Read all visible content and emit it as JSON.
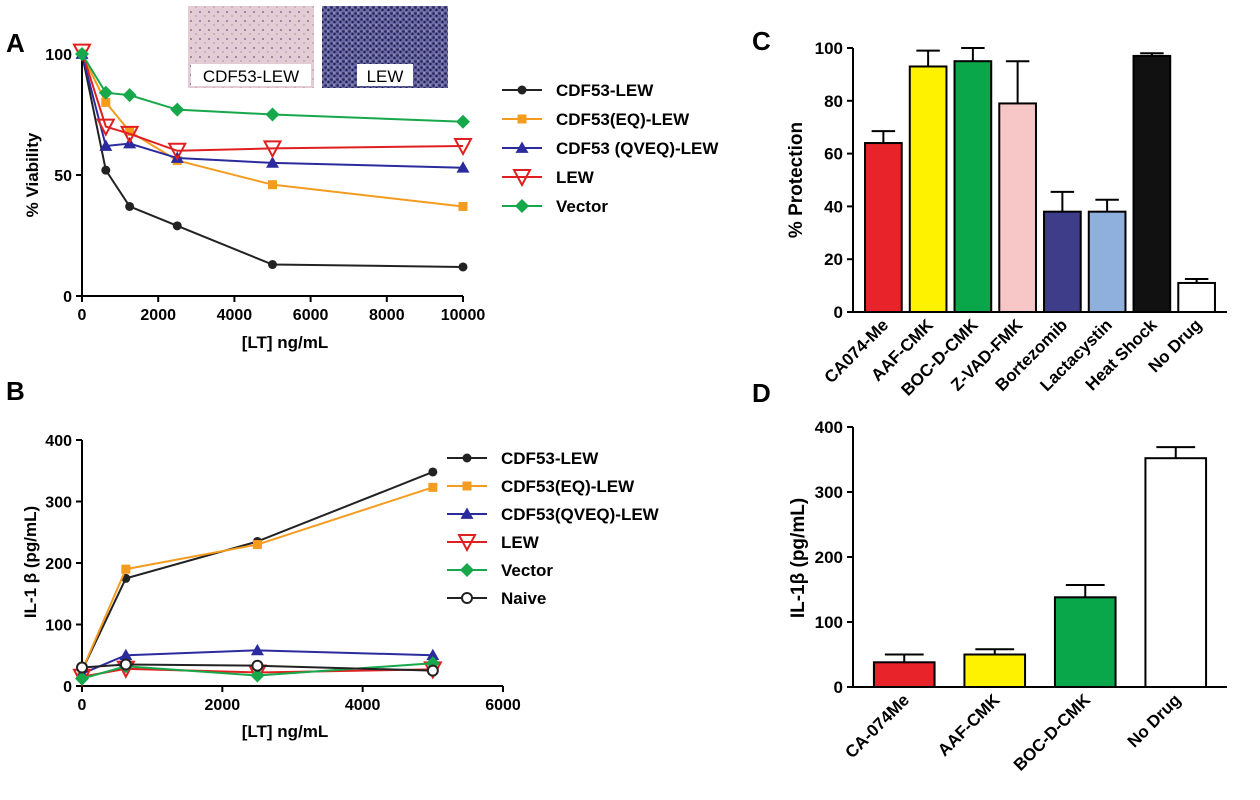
{
  "panel_labels": [
    "A",
    "B",
    "C",
    "D"
  ],
  "inset": {
    "left_label": "CDF53-LEW",
    "right_label": "LEW",
    "left_color": "#e6cfd6",
    "right_color": "#4a4a86"
  },
  "chart_data": [
    {
      "panel": "A",
      "type": "line",
      "xlabel": "[LT] ng/mL",
      "ylabel": "% Viability",
      "xlim": [
        0,
        10000
      ],
      "ylim": [
        0,
        100
      ],
      "xticks": [
        0,
        2000,
        4000,
        6000,
        8000,
        10000
      ],
      "yticks": [
        0,
        50,
        100
      ],
      "legend_position": "right",
      "series": [
        {
          "name": "CDF53-LEW",
          "color": "#222222",
          "marker": "circle",
          "x": [
            0,
            625,
            1250,
            2500,
            5000,
            10000
          ],
          "y": [
            100,
            52,
            37,
            29,
            13,
            12
          ]
        },
        {
          "name": "CDF53(EQ)-LEW",
          "color": "#f39c1f",
          "marker": "square",
          "x": [
            0,
            625,
            1250,
            2500,
            5000,
            10000
          ],
          "y": [
            100,
            80,
            68,
            56,
            46,
            37
          ]
        },
        {
          "name": "CDF53 (QVEQ)-LEW",
          "color": "#2b2b9e",
          "marker": "triangle",
          "x": [
            0,
            625,
            1250,
            2500,
            5000,
            10000
          ],
          "y": [
            100,
            62,
            63,
            57,
            55,
            53
          ]
        },
        {
          "name": "LEW",
          "color": "#e02020",
          "marker": "triangle-down-open",
          "x": [
            0,
            625,
            1250,
            2500,
            5000,
            10000
          ],
          "y": [
            101,
            70,
            67,
            60,
            61,
            62
          ]
        },
        {
          "name": "Vector",
          "color": "#16a84a",
          "marker": "diamond",
          "x": [
            0,
            625,
            1250,
            2500,
            5000,
            10000
          ],
          "y": [
            100,
            84,
            83,
            77,
            75,
            72
          ]
        }
      ]
    },
    {
      "panel": "B",
      "type": "line",
      "xlabel": "[LT] ng/mL",
      "ylabel": "IL-1 β (pg/mL)",
      "xlim": [
        0,
        6000
      ],
      "ylim": [
        0,
        400
      ],
      "xticks": [
        0,
        2000,
        4000,
        6000
      ],
      "yticks": [
        0,
        100,
        200,
        300,
        400
      ],
      "legend_position": "right",
      "series": [
        {
          "name": "CDF53-LEW",
          "color": "#222222",
          "marker": "circle",
          "x": [
            0,
            625,
            2500,
            5000
          ],
          "y": [
            25,
            175,
            235,
            348
          ]
        },
        {
          "name": "CDF53(EQ)-LEW",
          "color": "#f39c1f",
          "marker": "square",
          "x": [
            0,
            625,
            2500,
            5000
          ],
          "y": [
            25,
            190,
            230,
            323
          ]
        },
        {
          "name": "CDF53(QVEQ)-LEW",
          "color": "#2b2b9e",
          "marker": "triangle",
          "x": [
            0,
            625,
            2500,
            5000
          ],
          "y": [
            20,
            50,
            58,
            50
          ]
        },
        {
          "name": "LEW",
          "color": "#e02020",
          "marker": "triangle-down-open",
          "x": [
            0,
            625,
            2500,
            5000
          ],
          "y": [
            15,
            28,
            22,
            27
          ]
        },
        {
          "name": "Vector",
          "color": "#16a84a",
          "marker": "diamond",
          "x": [
            0,
            625,
            2500,
            5000
          ],
          "y": [
            12,
            32,
            17,
            37
          ]
        },
        {
          "name": "Naive",
          "color": "#222222",
          "marker": "circle-open",
          "x": [
            0,
            625,
            2500,
            5000
          ],
          "y": [
            30,
            35,
            33,
            25
          ]
        }
      ]
    },
    {
      "panel": "C",
      "type": "bar",
      "ylabel": "% Protection",
      "ylim": [
        0,
        100
      ],
      "yticks": [
        0,
        20,
        40,
        60,
        80,
        100
      ],
      "categories": [
        "CA074-Me",
        "AAF-CMK",
        "BOC-D-CMK",
        "Z-VAD-FMK",
        "Bortezomib",
        "Lactacystin",
        "Heat Shock",
        "No Drug"
      ],
      "values": [
        64,
        93,
        95,
        79,
        38,
        38,
        97,
        11
      ],
      "errors": [
        4.5,
        6,
        5,
        16,
        7.5,
        4.5,
        1,
        1.5
      ],
      "colors": [
        "#e8232a",
        "#fff200",
        "#0aa64a",
        "#f7c6c7",
        "#3d3d8a",
        "#8fb0dd",
        "#111111",
        "#ffffff"
      ]
    },
    {
      "panel": "D",
      "type": "bar",
      "ylabel": "IL-1β (pg/mL)",
      "ylim": [
        0,
        400
      ],
      "yticks": [
        0,
        100,
        200,
        300,
        400
      ],
      "categories": [
        "CA-074Me",
        "AAF-CMK",
        "BOC-D-CMK",
        "No Drug"
      ],
      "values": [
        38,
        50,
        138,
        352
      ],
      "errors": [
        12,
        8,
        19,
        17
      ],
      "colors": [
        "#e8232a",
        "#fff200",
        "#0aa64a",
        "#ffffff"
      ]
    }
  ]
}
